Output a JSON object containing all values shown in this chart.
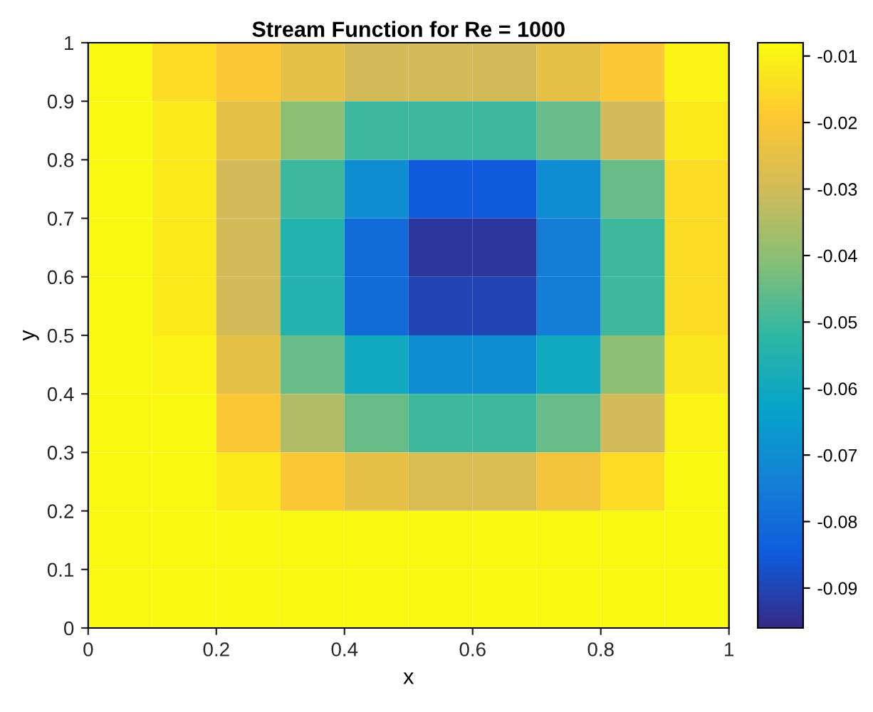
{
  "chart_data": {
    "type": "heatmap",
    "title": "Stream Function for Re = 1000",
    "xlabel": "x",
    "ylabel": "y",
    "xlim": [
      0,
      1
    ],
    "ylim": [
      0,
      1
    ],
    "xticks": [
      0,
      0.2,
      0.4,
      0.6,
      0.8,
      1
    ],
    "yticks": [
      0,
      0.1,
      0.2,
      0.3,
      0.4,
      0.5,
      0.6,
      0.7,
      0.8,
      0.9,
      1
    ],
    "clim": [
      -0.096,
      -0.008
    ],
    "cticks": [
      -0.09,
      -0.08,
      -0.07,
      -0.06,
      -0.05,
      -0.04,
      -0.03,
      -0.02,
      -0.01
    ],
    "cells": [
      [
        -0.009,
        -0.015,
        -0.02,
        -0.025,
        -0.03,
        -0.03,
        -0.03,
        -0.025,
        -0.02,
        -0.01
      ],
      [
        -0.009,
        -0.012,
        -0.025,
        -0.04,
        -0.05,
        -0.05,
        -0.05,
        -0.045,
        -0.03,
        -0.012
      ],
      [
        -0.009,
        -0.012,
        -0.03,
        -0.05,
        -0.07,
        -0.085,
        -0.085,
        -0.07,
        -0.045,
        -0.015
      ],
      [
        -0.009,
        -0.012,
        -0.03,
        -0.055,
        -0.08,
        -0.093,
        -0.093,
        -0.075,
        -0.05,
        -0.015
      ],
      [
        -0.009,
        -0.012,
        -0.03,
        -0.055,
        -0.08,
        -0.09,
        -0.09,
        -0.075,
        -0.05,
        -0.015
      ],
      [
        -0.009,
        -0.01,
        -0.025,
        -0.045,
        -0.06,
        -0.07,
        -0.07,
        -0.06,
        -0.04,
        -0.013
      ],
      [
        -0.009,
        -0.009,
        -0.02,
        -0.035,
        -0.045,
        -0.05,
        -0.05,
        -0.045,
        -0.03,
        -0.01
      ],
      [
        -0.009,
        -0.009,
        -0.012,
        -0.02,
        -0.025,
        -0.028,
        -0.028,
        -0.022,
        -0.015,
        -0.009
      ],
      [
        -0.009,
        -0.009,
        -0.009,
        -0.009,
        -0.009,
        -0.009,
        -0.009,
        -0.009,
        -0.009,
        -0.009
      ],
      [
        -0.009,
        -0.009,
        -0.009,
        -0.009,
        -0.009,
        -0.009,
        -0.009,
        -0.009,
        -0.009,
        -0.009
      ]
    ]
  }
}
